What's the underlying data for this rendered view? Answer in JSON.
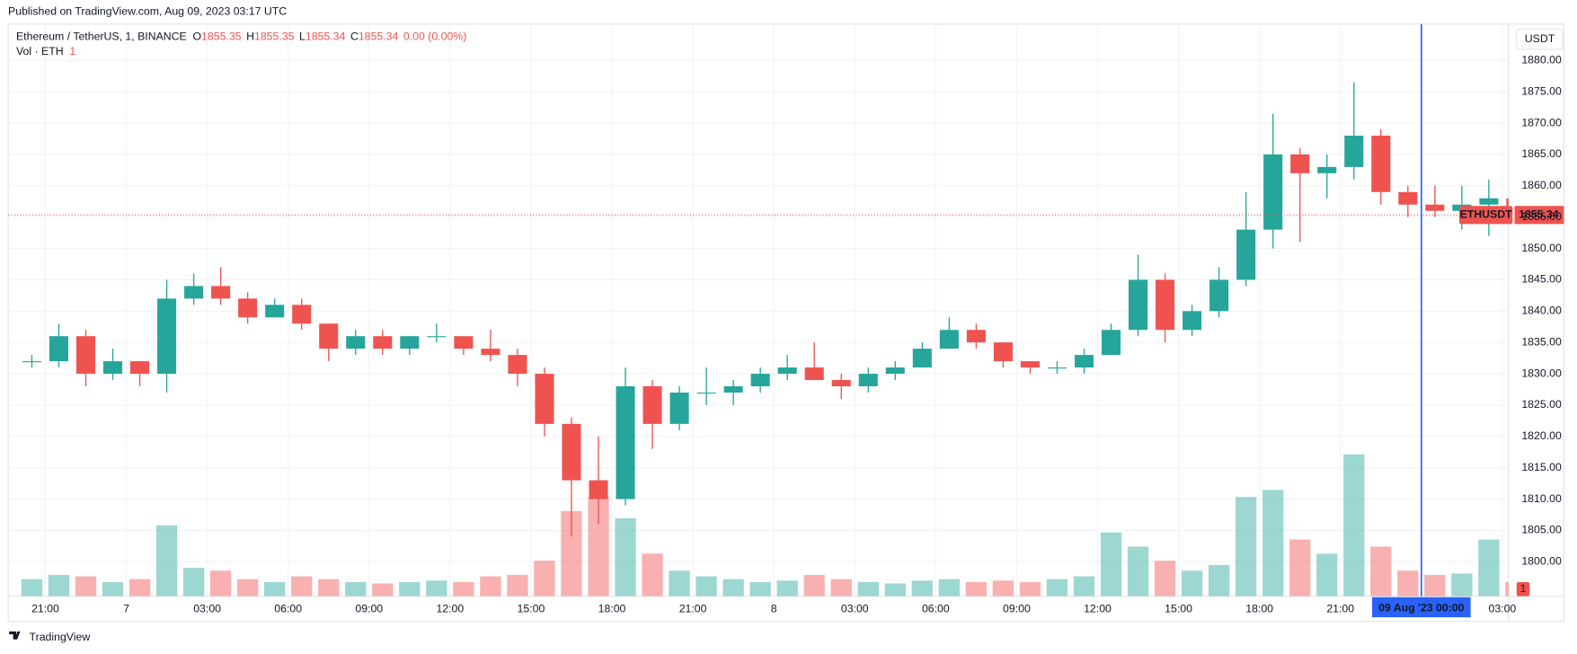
{
  "header": {
    "published": "Published on TradingView.com, Aug 09, 2023 03:17 UTC"
  },
  "footer": {
    "brand": "TradingView"
  },
  "chart_data": {
    "type": "candlestick",
    "title": "Ethereum / TetherUS, 1, BINANCE",
    "ohlc_legend": [
      {
        "label": "O",
        "value": 1855.35
      },
      {
        "label": "H",
        "value": 1855.35
      },
      {
        "label": "L",
        "value": 1855.34
      },
      {
        "label": "C",
        "value": 1855.34
      }
    ],
    "change": "0.00 (0.00%)",
    "currency": "USDT",
    "symbol": "ETHUSDT",
    "categories": [
      null,
      "21:00",
      null,
      null,
      "7",
      null,
      null,
      "03:00",
      null,
      null,
      "06:00",
      null,
      null,
      "09:00",
      null,
      null,
      "12:00",
      null,
      null,
      "15:00",
      null,
      null,
      "18:00",
      null,
      null,
      "21:00",
      null,
      null,
      "8",
      null,
      null,
      "03:00",
      null,
      null,
      "06:00",
      null,
      null,
      "09:00",
      null,
      null,
      "12:00",
      null,
      null,
      "15:00",
      null,
      null,
      "18:00",
      null,
      null,
      "21:00",
      null,
      null,
      "09 Aug '23  00:00",
      null,
      null,
      "03:00"
    ],
    "open": [
      1832,
      1832,
      1836,
      1830,
      1832,
      1830,
      1842,
      1844,
      1842,
      1839,
      1841,
      1838,
      1834,
      1836,
      1834,
      1836,
      1836,
      1834,
      1833,
      1830,
      1822,
      1813,
      1810,
      1828,
      1822,
      1827,
      1827,
      1828,
      1830,
      1831,
      1829,
      1828,
      1830,
      1831,
      1834,
      1837,
      1835,
      1832,
      1831,
      1831,
      1833,
      1837,
      1845,
      1837,
      1840,
      1845,
      1853,
      1865,
      1862,
      1863,
      1868,
      1859,
      1857,
      1856,
      1857,
      1858
    ],
    "high": [
      1833,
      1838,
      1837,
      1834,
      1832,
      1845,
      1846,
      1847,
      1843,
      1842,
      1842,
      1838,
      1837,
      1837,
      1836,
      1838,
      1836,
      1837,
      1834,
      1831,
      1823,
      1820,
      1831,
      1829,
      1828,
      1831,
      1829,
      1831,
      1833,
      1835,
      1830,
      1831,
      1832,
      1835,
      1839,
      1838,
      1835,
      1832,
      1832,
      1834,
      1838,
      1849,
      1846,
      1841,
      1847,
      1859,
      1871.5,
      1866,
      1865,
      1876.5,
      1869,
      1860,
      1860,
      1860,
      1861,
      1858
    ],
    "low": [
      1831,
      1831,
      1828,
      1829,
      1828,
      1827,
      1841,
      1841,
      1838,
      1839,
      1837,
      1832,
      1833,
      1833,
      1833,
      1835,
      1833,
      1832,
      1828,
      1820,
      1804,
      1806,
      1809,
      1818,
      1821,
      1825,
      1825,
      1827,
      1829,
      1829,
      1826,
      1827,
      1829,
      1831,
      1834,
      1834,
      1831,
      1830,
      1830,
      1830,
      1833,
      1836,
      1835,
      1836,
      1839,
      1844,
      1850,
      1851,
      1858,
      1861,
      1857,
      1855,
      1855,
      1853,
      1852,
      1855
    ],
    "close": [
      1832,
      1836,
      1830,
      1832,
      1830,
      1842,
      1844,
      1842,
      1839,
      1841,
      1838,
      1834,
      1836,
      1834,
      1836,
      1836,
      1834,
      1833,
      1830,
      1822,
      1813,
      1810,
      1828,
      1822,
      1827,
      1827,
      1828,
      1830,
      1831,
      1829,
      1828,
      1830,
      1831,
      1834,
      1837,
      1835,
      1832,
      1831,
      1831,
      1833,
      1837,
      1845,
      1837,
      1840,
      1845,
      1853,
      1865,
      1862,
      1863,
      1868,
      1859,
      1857,
      1856,
      1857,
      1858,
      1855.34
    ],
    "up_color": "#26a69a",
    "down_color": "#ef5350",
    "volume": {
      "name": "Vol · ETH",
      "last": 1,
      "values": [
        12,
        15,
        14,
        10,
        12,
        50,
        20,
        18,
        12,
        10,
        14,
        12,
        10,
        9,
        10,
        11,
        10,
        14,
        15,
        25,
        60,
        70,
        55,
        30,
        18,
        14,
        12,
        10,
        11,
        15,
        12,
        10,
        9,
        11,
        12,
        10,
        11,
        10,
        12,
        14,
        45,
        35,
        25,
        18,
        22,
        70,
        75,
        40,
        30,
        100,
        35,
        18,
        15,
        16,
        40,
        10
      ]
    },
    "ylim": [
      1794.5,
      1885.8
    ],
    "yticks": [
      {
        "value": 1800,
        "label": "1800.00"
      },
      {
        "value": 1805,
        "label": "1805.00"
      },
      {
        "value": 1810,
        "label": "1810.00"
      },
      {
        "value": 1815,
        "label": "1815.00"
      },
      {
        "value": 1820,
        "label": "1820.00"
      },
      {
        "value": 1825,
        "label": "1825.00"
      },
      {
        "value": 1830,
        "label": "1830.00"
      },
      {
        "value": 1835,
        "label": "1835.00"
      },
      {
        "value": 1840,
        "label": "1840.00"
      },
      {
        "value": 1845,
        "label": "1845.00"
      },
      {
        "value": 1850,
        "label": "1850.00"
      },
      {
        "value": 1855,
        "label": "1855.00"
      },
      {
        "value": 1860,
        "label": "1860.00"
      },
      {
        "value": 1865,
        "label": "1865.00"
      },
      {
        "value": 1870,
        "label": "1870.00"
      },
      {
        "value": 1875,
        "label": "1875.00"
      },
      {
        "value": 1880,
        "label": "1880.00"
      }
    ],
    "grid": true,
    "crosshair": {
      "category": 52,
      "color": "#2962ff"
    }
  }
}
